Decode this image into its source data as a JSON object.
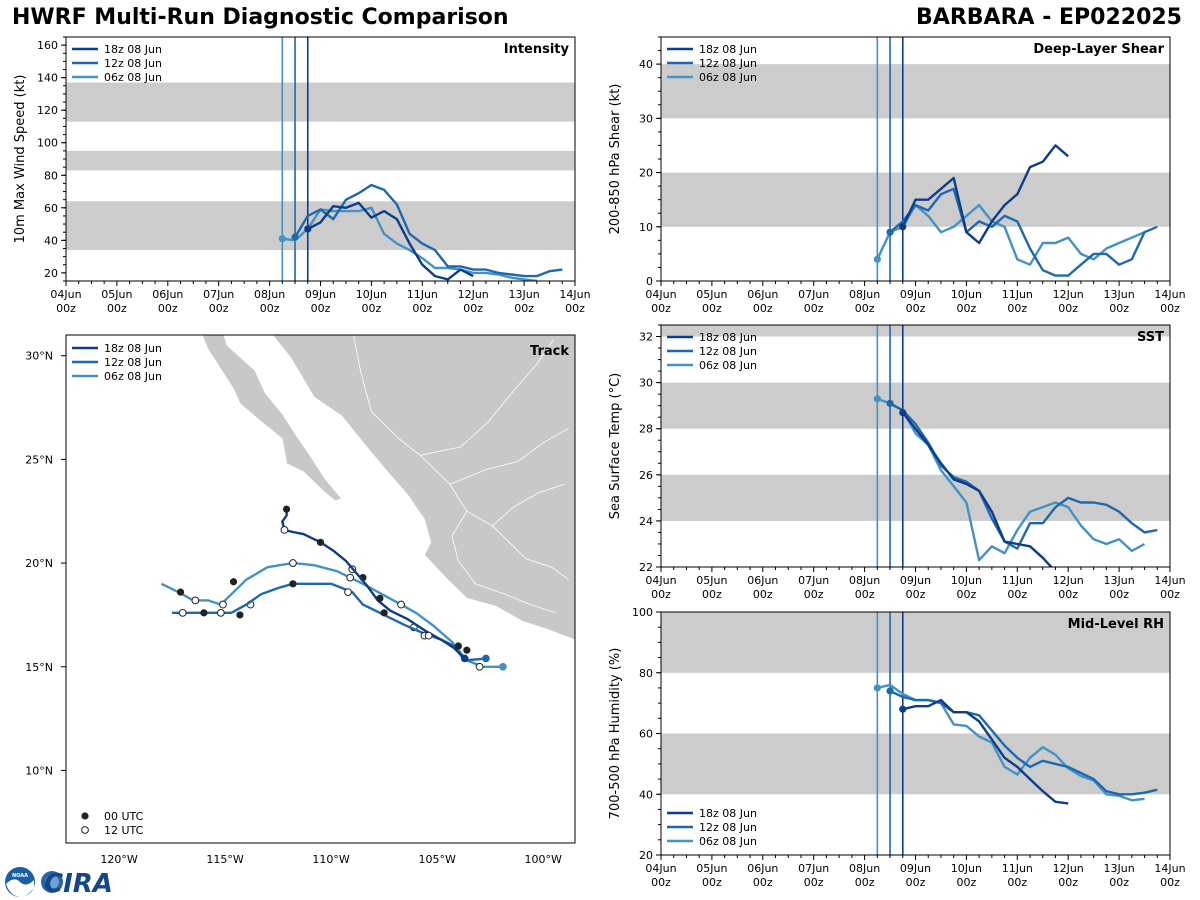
{
  "page": {
    "title_left": "HWRF Multi-Run Diagnostic Comparison",
    "title_right": "BARBARA - EP022025",
    "logo_text": "CIRA",
    "logo_small": "NOAA"
  },
  "colors": {
    "run_18z": "#0c3d8a",
    "run_12z": "#1e68b0",
    "run_06z": "#4292c6",
    "band": "#cccccc",
    "land": "#c8c8c8"
  },
  "time_axis": {
    "labels": [
      [
        "04Jun",
        "00z"
      ],
      [
        "05Jun",
        "00z"
      ],
      [
        "06Jun",
        "00z"
      ],
      [
        "07Jun",
        "00z"
      ],
      [
        "08Jun",
        "00z"
      ],
      [
        "09Jun",
        "00z"
      ],
      [
        "10Jun",
        "00z"
      ],
      [
        "11Jun",
        "00z"
      ],
      [
        "12Jun",
        "00z"
      ],
      [
        "13Jun",
        "00z"
      ],
      [
        "14Jun",
        "00z"
      ]
    ],
    "start_day": 4,
    "end_day": 14
  },
  "runs": [
    {
      "name": "18z 08 Jun",
      "init": 8.75,
      "color_key": "run_18z"
    },
    {
      "name": "12z 08 Jun",
      "init": 8.5,
      "color_key": "run_12z"
    },
    {
      "name": "06z 08 Jun",
      "init": 8.25,
      "color_key": "run_06z"
    }
  ],
  "chart_data": [
    {
      "id": "intensity",
      "type": "line",
      "title": "Intensity",
      "ylabel": "10m Max Wind Speed (kt)",
      "ylim": [
        15,
        165
      ],
      "yticks": [
        20,
        40,
        60,
        80,
        100,
        120,
        140,
        160
      ],
      "bands": [
        [
          34,
          64
        ],
        [
          83,
          95
        ],
        [
          113,
          137
        ]
      ],
      "legend_position": "top-left",
      "series": [
        {
          "name": "18z 08 Jun",
          "x": [
            8.75,
            9.0,
            9.25,
            9.5,
            9.75,
            10.0,
            10.25,
            10.5,
            10.75,
            11.0,
            11.25,
            11.5,
            11.75,
            12.0
          ],
          "y": [
            47,
            51,
            61,
            60,
            63,
            54,
            58,
            53,
            38,
            25,
            18,
            16,
            22,
            18
          ]
        },
        {
          "name": "12z 08 Jun",
          "x": [
            8.5,
            8.75,
            9.0,
            9.25,
            9.5,
            9.75,
            10.0,
            10.25,
            10.5,
            10.75,
            11.0,
            11.25,
            11.5,
            11.75,
            12.0,
            12.25,
            12.5,
            12.75,
            13.0,
            13.25,
            13.5,
            13.75
          ],
          "y": [
            42,
            55,
            59,
            53,
            65,
            69,
            74,
            71,
            62,
            44,
            38,
            34,
            24,
            24,
            22,
            22,
            20,
            19,
            18,
            18,
            21,
            22
          ]
        },
        {
          "name": "06z 08 Jun",
          "x": [
            8.25,
            8.5,
            8.75,
            9.0,
            9.25,
            9.5,
            9.75,
            10.0,
            10.25,
            10.5,
            10.75,
            11.0,
            11.25,
            11.5,
            11.75,
            12.0,
            12.25,
            12.5,
            12.75,
            13.0,
            13.25
          ],
          "y": [
            41,
            40,
            47,
            59,
            58,
            58,
            58,
            60,
            44,
            38,
            34,
            29,
            23,
            23,
            22,
            20,
            20,
            19,
            17,
            16,
            15
          ]
        }
      ]
    },
    {
      "id": "shear",
      "type": "line",
      "title": "Deep-Layer Shear",
      "ylabel": "200-850 hPa Shear (kt)",
      "ylim": [
        0,
        45
      ],
      "yticks": [
        0,
        10,
        20,
        30,
        40
      ],
      "bands": [
        [
          10,
          20
        ],
        [
          30,
          40
        ]
      ],
      "legend_position": "top-left",
      "series": [
        {
          "name": "18z 08 Jun",
          "x": [
            8.75,
            9.0,
            9.25,
            9.5,
            9.75,
            10.0,
            10.25,
            10.5,
            10.75,
            11.0,
            11.25,
            11.5,
            11.75,
            12.0
          ],
          "y": [
            10,
            15,
            15,
            17,
            19,
            9,
            7,
            11,
            14,
            16,
            21,
            22,
            25,
            23
          ]
        },
        {
          "name": "12z 08 Jun",
          "x": [
            8.5,
            8.75,
            9.0,
            9.25,
            9.5,
            9.75,
            10.0,
            10.25,
            10.5,
            10.75,
            11.0,
            11.25,
            11.5,
            11.75,
            12.0,
            12.25,
            12.5,
            12.75,
            13.0,
            13.25,
            13.5,
            13.75
          ],
          "y": [
            9,
            11,
            14,
            13,
            16,
            17,
            9,
            11,
            10,
            12,
            11,
            6,
            2,
            1,
            1,
            3,
            5,
            5,
            3,
            4,
            9,
            10
          ]
        },
        {
          "name": "06z 08 Jun",
          "x": [
            8.25,
            8.5,
            8.75,
            9.0,
            9.25,
            9.5,
            9.75,
            10.0,
            10.25,
            10.5,
            10.75,
            11.0,
            11.25,
            11.5,
            11.75,
            12.0,
            12.25,
            12.5,
            12.75,
            13.0,
            13.25,
            13.5
          ],
          "y": [
            4,
            9,
            10,
            14,
            12,
            9,
            10,
            12,
            14,
            11,
            10,
            4,
            3,
            7,
            7,
            8,
            5,
            4,
            6,
            7,
            8,
            9
          ]
        }
      ]
    },
    {
      "id": "track",
      "type": "map-track",
      "title": "Track",
      "lon_range": [
        -122.5,
        -98.5
      ],
      "lat_range": [
        6.5,
        31.0
      ],
      "xticks": [
        -120,
        -115,
        -110,
        -105,
        -100
      ],
      "xtick_labels": [
        "120°W",
        "115°W",
        "110°W",
        "105°W",
        "100°W"
      ],
      "yticks": [
        10,
        15,
        20,
        25,
        30
      ],
      "ytick_labels": [
        "10°N",
        "15°N",
        "20°N",
        "25°N",
        "30°N"
      ],
      "legend_position": "top-left",
      "marker_legend": [
        "00 UTC",
        "12 UTC"
      ],
      "series": [
        {
          "name": "18z 08 Jun",
          "lon": [
            -103.7,
            -104.2,
            -104.8,
            -105.5,
            -106.4,
            -107.2,
            -107.8,
            -108.3,
            -108.8,
            -109.3,
            -109.9,
            -110.5,
            -111.3,
            -111.8,
            -112.2,
            -112.3,
            -112.1,
            -112.1
          ],
          "lat": [
            15.4,
            15.9,
            16.3,
            16.7,
            17.3,
            17.7,
            18.2,
            18.9,
            19.5,
            20.1,
            20.6,
            21.0,
            21.4,
            21.5,
            21.6,
            22.0,
            22.3,
            22.6
          ],
          "m00": [
            [
              -104.0,
              16.0
            ],
            [
              -107.7,
              18.3
            ],
            [
              -110.5,
              21.0
            ],
            [
              -112.1,
              22.6
            ]
          ],
          "m12": [
            [
              -105.4,
              16.5
            ],
            [
              -109.1,
              19.3
            ],
            [
              -112.2,
              21.6
            ]
          ]
        },
        {
          "name": "12z 08 Jun",
          "lon": [
            -102.7,
            -103.7,
            -104.2,
            -104.8,
            -105.6,
            -106.5,
            -107.5,
            -108.5,
            -109.0,
            -110.0,
            -111.0,
            -111.8,
            -112.5,
            -113.3,
            -114.0,
            -114.7,
            -115.0,
            -115.3,
            -116.0,
            -116.8,
            -117.5
          ],
          "lat": [
            15.4,
            15.3,
            16.0,
            16.3,
            16.6,
            17.0,
            17.5,
            18.0,
            18.6,
            19.0,
            19.0,
            19.0,
            18.8,
            18.5,
            18.0,
            17.6,
            17.6,
            17.6,
            17.6,
            17.6,
            17.6
          ],
          "m00": [
            [
              -103.6,
              15.8
            ],
            [
              -107.5,
              17.6
            ],
            [
              -111.8,
              19.0
            ],
            [
              -114.3,
              17.5
            ],
            [
              -116.0,
              17.6
            ]
          ],
          "m12": [
            [
              -105.6,
              16.5
            ],
            [
              -109.2,
              18.6
            ],
            [
              -115.2,
              17.6
            ],
            [
              -117.0,
              17.6
            ]
          ]
        },
        {
          "name": "06z 08 Jun",
          "lon": [
            -101.9,
            -102.8,
            -103.6,
            -104.3,
            -105.2,
            -106.0,
            -106.7,
            -107.6,
            -108.5,
            -109.7,
            -110.8,
            -111.8,
            -113.0,
            -114.0,
            -114.7,
            -115.2,
            -115.8,
            -116.5,
            -117.2,
            -118.0
          ],
          "lat": [
            15.0,
            15.0,
            15.3,
            16.2,
            17.0,
            17.6,
            18.0,
            18.5,
            19.0,
            19.6,
            19.9,
            20.0,
            19.8,
            19.2,
            18.5,
            18.0,
            18.2,
            18.2,
            18.6,
            19.0
          ],
          "m00": [
            [
              -101.9,
              15.0
            ],
            [
              -108.5,
              19.3
            ],
            [
              -114.6,
              19.1
            ],
            [
              -117.1,
              18.6
            ]
          ],
          "m12": [
            [
              -103.0,
              15.0
            ],
            [
              -106.1,
              16.9
            ],
            [
              -106.7,
              18.0
            ],
            [
              -109.0,
              19.7
            ],
            [
              -111.8,
              20.0
            ],
            [
              -113.8,
              18.0
            ],
            [
              -115.1,
              18.0
            ],
            [
              -116.4,
              18.2
            ]
          ]
        }
      ]
    },
    {
      "id": "sst",
      "type": "line",
      "title": "SST",
      "ylabel": "Sea Surface Temp (°C)",
      "ylim": [
        22,
        32.5
      ],
      "yticks": [
        22,
        24,
        26,
        28,
        30,
        32
      ],
      "bands": [
        [
          24,
          26
        ],
        [
          28,
          30
        ],
        [
          32,
          32.5
        ]
      ],
      "legend_position": "top-left",
      "series": [
        {
          "name": "18z 08 Jun",
          "x": [
            8.75,
            9.0,
            9.25,
            9.5,
            9.75,
            10.0,
            10.25,
            10.5,
            10.75,
            11.0,
            11.25,
            11.5,
            11.75
          ],
          "y": [
            28.7,
            28.0,
            27.3,
            26.5,
            25.8,
            25.6,
            25.3,
            24.4,
            23.1,
            23.0,
            22.9,
            22.4,
            21.8
          ]
        },
        {
          "name": "12z 08 Jun",
          "x": [
            8.5,
            8.75,
            9.0,
            9.25,
            9.5,
            9.75,
            10.0,
            10.25,
            10.5,
            10.75,
            11.0,
            11.25,
            11.5,
            11.75,
            12.0,
            12.25,
            12.5,
            12.75,
            13.0,
            13.25,
            13.5,
            13.75
          ],
          "y": [
            29.1,
            28.8,
            28.2,
            27.4,
            26.4,
            25.9,
            25.7,
            25.3,
            24.1,
            23.1,
            22.8,
            23.9,
            23.9,
            24.6,
            25.0,
            24.8,
            24.8,
            24.7,
            24.4,
            23.9,
            23.5,
            23.6
          ]
        },
        {
          "name": "06z 08 Jun",
          "x": [
            8.25,
            8.5,
            8.75,
            9.0,
            9.25,
            9.5,
            9.75,
            10.0,
            10.25,
            10.5,
            10.75,
            11.0,
            11.25,
            11.5,
            11.75,
            12.0,
            12.25,
            12.5,
            12.75,
            13.0,
            13.25,
            13.5
          ],
          "y": [
            29.3,
            29.1,
            28.8,
            27.8,
            27.3,
            26.2,
            25.5,
            24.8,
            22.3,
            22.9,
            22.6,
            23.6,
            24.4,
            24.6,
            24.8,
            24.6,
            23.8,
            23.2,
            23.0,
            23.2,
            22.7,
            23.0
          ]
        }
      ]
    },
    {
      "id": "rh",
      "type": "line",
      "title": "Mid-Level RH",
      "ylabel": "700-500 hPa Humidity (%)",
      "ylim": [
        20,
        100
      ],
      "yticks": [
        20,
        40,
        60,
        80,
        100
      ],
      "bands": [
        [
          40,
          60
        ],
        [
          80,
          100
        ]
      ],
      "legend_position": "bottom-left",
      "series": [
        {
          "name": "18z 08 Jun",
          "x": [
            8.75,
            9.0,
            9.25,
            9.5,
            9.75,
            10.0,
            10.25,
            10.5,
            10.75,
            11.0,
            11.25,
            11.5,
            11.75,
            12.0
          ],
          "y": [
            68,
            69,
            69,
            71,
            67,
            67,
            64,
            58,
            52,
            49,
            45,
            41,
            37.5,
            37
          ]
        },
        {
          "name": "12z 08 Jun",
          "x": [
            8.5,
            8.75,
            9.0,
            9.25,
            9.5,
            9.75,
            10.0,
            10.25,
            10.5,
            10.75,
            11.0,
            11.25,
            11.5,
            11.75,
            12.0,
            12.25,
            12.5,
            12.75,
            13.0,
            13.25,
            13.5,
            13.75
          ],
          "y": [
            74,
            72,
            71,
            71,
            70,
            67,
            67,
            66,
            61,
            56,
            52,
            49,
            51,
            50,
            49,
            47,
            45,
            41,
            40,
            40,
            40.5,
            41.5
          ]
        },
        {
          "name": "06z 08 Jun",
          "x": [
            8.25,
            8.5,
            8.75,
            9.0,
            9.25,
            9.5,
            9.75,
            10.0,
            10.25,
            10.5,
            10.75,
            11.0,
            11.25,
            11.5,
            11.75,
            12.0,
            12.25,
            12.5,
            12.75,
            13.0,
            13.25,
            13.5
          ],
          "y": [
            75,
            76,
            73,
            71,
            71,
            70,
            63,
            62.5,
            59,
            57,
            49,
            46.5,
            52,
            55.5,
            53,
            48.5,
            46,
            44.5,
            40,
            39.5,
            38,
            38.5
          ]
        }
      ]
    }
  ]
}
